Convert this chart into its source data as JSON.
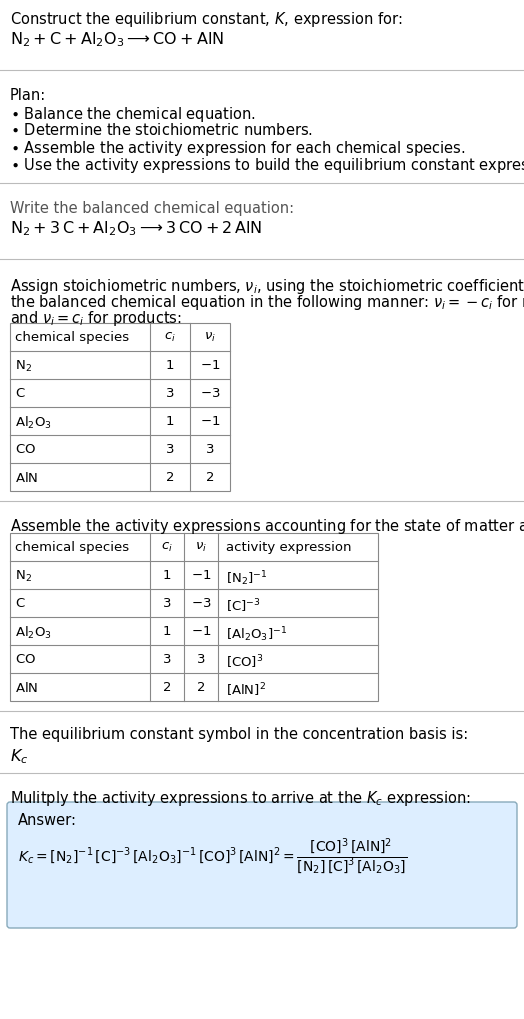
{
  "bg_color": "#ffffff",
  "text_color": "#000000",
  "gray_color": "#555555",
  "table_line_color": "#888888",
  "sep_color": "#bbbbbb",
  "answer_box_bg": "#ddeeff",
  "answer_box_border": "#88aabb",
  "title_text": "Construct the equilibrium constant, $K$, expression for:",
  "rxn_unbalanced": "$\\mathrm{N_2 + C + Al_2O_3} \\longrightarrow \\mathrm{CO + AlN}$",
  "plan_header": "Plan:",
  "plan_items": [
    "$\\bullet$ Balance the chemical equation.",
    "$\\bullet$ Determine the stoichiometric numbers.",
    "$\\bullet$ Assemble the activity expression for each chemical species.",
    "$\\bullet$ Use the activity expressions to build the equilibrium constant expression."
  ],
  "balanced_header": "Write the balanced chemical equation:",
  "rxn_balanced": "$\\mathrm{N_2 + 3\\,C + Al_2O_3} \\longrightarrow \\mathrm{3\\,CO + 2\\,AlN}$",
  "stoich_text1": "Assign stoichiometric numbers, $\\nu_i$, using the stoichiometric coefficients, $c_i$, from",
  "stoich_text2": "the balanced chemical equation in the following manner: $\\nu_i = -c_i$ for reactants",
  "stoich_text3": "and $\\nu_i = c_i$ for products:",
  "table1_col_headers": [
    "chemical species",
    "$c_i$",
    "$\\nu_i$"
  ],
  "table1_rows": [
    [
      "$\\mathrm{N_2}$",
      "1",
      "$-1$"
    ],
    [
      "$\\mathrm{C}$",
      "3",
      "$-3$"
    ],
    [
      "$\\mathrm{Al_2O_3}$",
      "1",
      "$-1$"
    ],
    [
      "$\\mathrm{CO}$",
      "3",
      "3"
    ],
    [
      "$\\mathrm{AlN}$",
      "2",
      "2"
    ]
  ],
  "activity_text": "Assemble the activity expressions accounting for the state of matter and $\\nu_i$:",
  "table2_col_headers": [
    "chemical species",
    "$c_i$",
    "$\\nu_i$",
    "activity expression"
  ],
  "table2_rows": [
    [
      "$\\mathrm{N_2}$",
      "1",
      "$-1$",
      "$[\\mathrm{N_2}]^{-1}$"
    ],
    [
      "$\\mathrm{C}$",
      "3",
      "$-3$",
      "$[\\mathrm{C}]^{-3}$"
    ],
    [
      "$\\mathrm{Al_2O_3}$",
      "1",
      "$-1$",
      "$[\\mathrm{Al_2O_3}]^{-1}$"
    ],
    [
      "$\\mathrm{CO}$",
      "3",
      "3",
      "$[\\mathrm{CO}]^{3}$"
    ],
    [
      "$\\mathrm{AlN}$",
      "2",
      "2",
      "$[\\mathrm{AlN}]^{2}$"
    ]
  ],
  "kc_basis_text": "The equilibrium constant symbol in the concentration basis is:",
  "kc_symbol": "$K_c$",
  "multiply_text": "Mulitply the activity expressions to arrive at the $K_c$ expression:",
  "answer_label": "Answer:",
  "kc_expr": "$K_c = [\\mathrm{N_2}]^{-1}\\,[\\mathrm{C}]^{-3}\\,[\\mathrm{Al_2O_3}]^{-1}\\,[\\mathrm{CO}]^{3}\\,[\\mathrm{AlN}]^{2} = \\dfrac{[\\mathrm{CO}]^3\\,[\\mathrm{AlN}]^2}{[\\mathrm{N_2}]\\,[\\mathrm{C}]^3\\,[\\mathrm{Al_2O_3}]}$"
}
